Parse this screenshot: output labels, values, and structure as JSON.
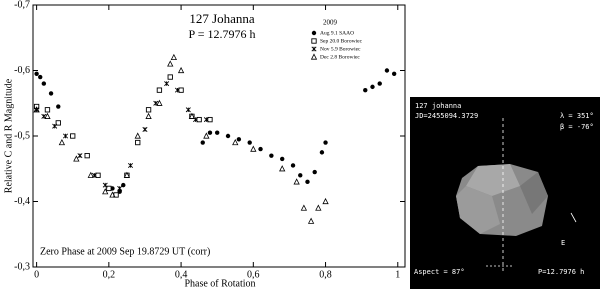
{
  "chart_data": {
    "type": "scatter",
    "title": "127 Johanna",
    "subtitle": "P = 12.7976 h",
    "legend_title": "2009",
    "legend": "top-right",
    "annotation": "Zero Phase at 2009 Sep 19.8729 UT (corr)",
    "x_label": "Phase of Rotation",
    "y_label": "Relative C and R Magnitude",
    "xlim": [
      -0.01,
      1.02
    ],
    "ylim": [
      -0.3,
      -0.7
    ],
    "xticks": [
      0,
      {
        "value": 0.2,
        "label": "0,2"
      },
      {
        "value": 0.4,
        "label": "0,4"
      },
      {
        "value": 0.6,
        "label": "0,6"
      },
      {
        "value": 0.8,
        "label": "0,8"
      },
      1
    ],
    "yticks": [
      {
        "value": -0.7,
        "label": "-0,7"
      },
      {
        "value": -0.6,
        "label": "-0,6"
      },
      {
        "value": -0.5,
        "label": "-0,5"
      },
      {
        "value": -0.4,
        "label": "-0,4"
      },
      {
        "value": -0.3,
        "label": "-0,3"
      }
    ],
    "series": [
      {
        "name": "Aug 9.1 SAAO",
        "color": "#000000",
        "marker": "circle",
        "x": [
          0.0,
          0.01,
          0.02,
          0.04,
          0.06,
          0.21,
          0.23,
          0.24,
          0.46,
          0.48,
          0.5,
          0.53,
          0.56,
          0.59,
          0.62,
          0.65,
          0.68,
          0.71,
          0.73,
          0.75,
          0.77,
          0.79,
          0.8,
          0.91,
          0.93,
          0.95,
          0.97,
          0.99
        ],
        "values": [
          -0.595,
          -0.59,
          -0.58,
          -0.565,
          -0.545,
          -0.42,
          -0.415,
          -0.425,
          -0.49,
          -0.505,
          -0.505,
          -0.5,
          -0.495,
          -0.49,
          -0.48,
          -0.47,
          -0.465,
          -0.455,
          -0.44,
          -0.43,
          -0.445,
          -0.475,
          -0.49,
          -0.57,
          -0.575,
          -0.58,
          -0.6,
          -0.595
        ]
      },
      {
        "name": "Sep 20.0 Borowiec",
        "color": "#000000",
        "marker": "square",
        "x": [
          0.0,
          0.03,
          0.06,
          0.1,
          0.14,
          0.17,
          0.2,
          0.22,
          0.25,
          0.28,
          0.31,
          0.34,
          0.37,
          0.4,
          0.43,
          0.45,
          0.48
        ],
        "values": [
          -0.545,
          -0.54,
          -0.52,
          -0.5,
          -0.47,
          -0.44,
          -0.42,
          -0.41,
          -0.44,
          -0.49,
          -0.54,
          -0.57,
          -0.59,
          -0.57,
          -0.53,
          -0.525,
          -0.525
        ]
      },
      {
        "name": "Nov 5.9 Borowiec",
        "color": "#000000",
        "marker": "cross",
        "x": [
          0.0,
          0.02,
          0.05,
          0.08,
          0.12,
          0.16,
          0.19,
          0.23,
          0.26,
          0.3,
          0.33,
          0.36,
          0.39,
          0.42,
          0.44,
          0.47
        ],
        "values": [
          -0.54,
          -0.53,
          -0.515,
          -0.5,
          -0.47,
          -0.44,
          -0.425,
          -0.42,
          -0.455,
          -0.51,
          -0.55,
          -0.58,
          -0.57,
          -0.54,
          -0.525,
          -0.525
        ]
      },
      {
        "name": "Dec 2.8 Borowiec",
        "color": "#000000",
        "marker": "triangle",
        "x": [
          0.0,
          0.03,
          0.07,
          0.11,
          0.15,
          0.19,
          0.21,
          0.25,
          0.28,
          0.31,
          0.34,
          0.37,
          0.38,
          0.4,
          0.43,
          0.47,
          0.55,
          0.6,
          0.68,
          0.72,
          0.74,
          0.76,
          0.78,
          0.8
        ],
        "values": [
          -0.54,
          -0.53,
          -0.49,
          -0.465,
          -0.44,
          -0.415,
          -0.41,
          -0.44,
          -0.5,
          -0.53,
          -0.55,
          -0.61,
          -0.62,
          -0.6,
          -0.53,
          -0.5,
          -0.49,
          -0.48,
          -0.45,
          -0.43,
          -0.39,
          -0.37,
          -0.39,
          -0.4
        ]
      }
    ]
  },
  "model_panel": {
    "name": "127 johanna",
    "jd": "JD=2455094.3729",
    "lambda": "λ = 351°",
    "beta": "β = -76°",
    "aspect": "Aspect = 87°",
    "period": "P=12.7976 h",
    "east": "E"
  }
}
